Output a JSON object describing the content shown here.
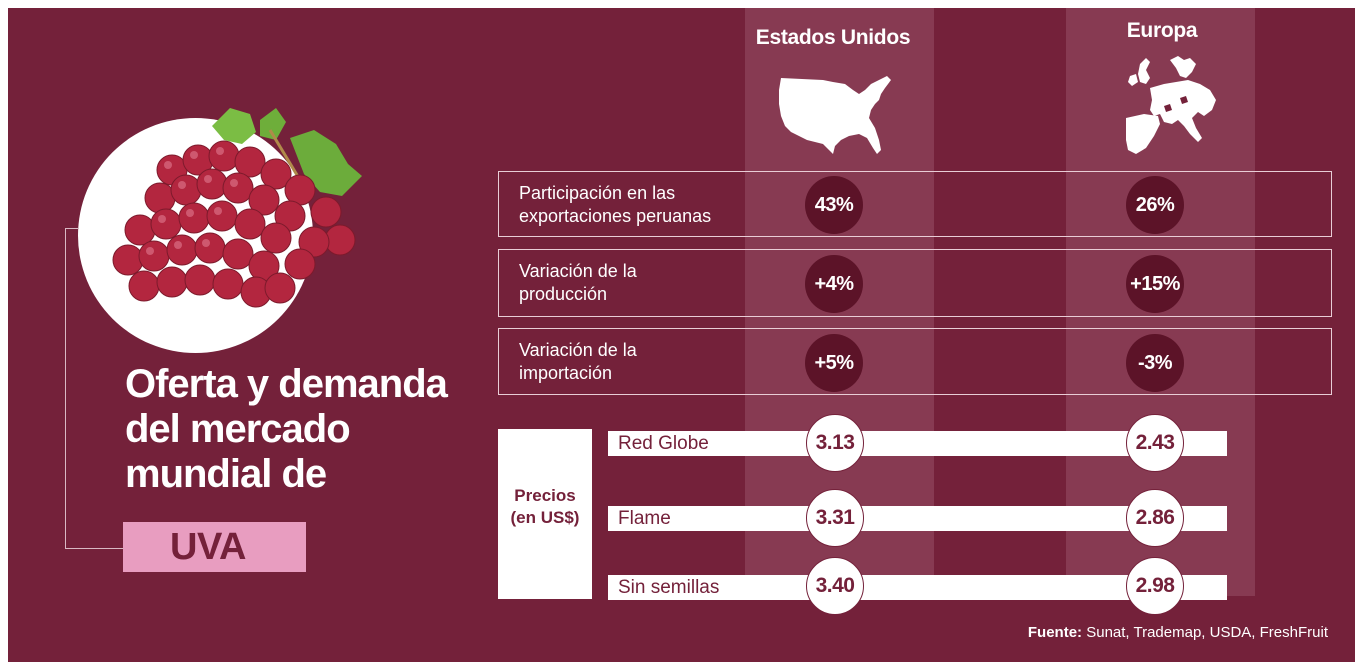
{
  "title": {
    "line1": "Oferta y demanda",
    "line2": "del mercado",
    "line3": "mundial de",
    "highlight": "UVA"
  },
  "columns": {
    "us": "Estados Unidos",
    "eu": "Europa"
  },
  "metrics": [
    {
      "label_line1": "Participación en las",
      "label_line2": "exportaciones peruanas",
      "us": "43%",
      "eu": "26%"
    },
    {
      "label_line1": "Variación de la",
      "label_line2": "producción",
      "us": "+4%",
      "eu": "+15%"
    },
    {
      "label_line1": "Variación de la",
      "label_line2": "importación",
      "us": "+5%",
      "eu": "-3%"
    }
  ],
  "prices": {
    "label_line1": "Precios",
    "label_line2": "(en US$)",
    "rows": [
      {
        "name": "Red Globe",
        "us": "3.13",
        "eu": "2.43"
      },
      {
        "name": "Flame",
        "us": "3.31",
        "eu": "2.86"
      },
      {
        "name": "Sin semillas",
        "us": "3.40",
        "eu": "2.98"
      }
    ]
  },
  "source": {
    "label": "Fuente:",
    "text": " Sunat, Trademap, USDA, FreshFruit"
  },
  "colors": {
    "background": "#74213a",
    "column_band": "#873a52",
    "dot": "#5c1328",
    "highlight": "#e89dc0"
  },
  "icons": [
    "usa-map-icon",
    "europe-map-icon",
    "grapes-image"
  ]
}
